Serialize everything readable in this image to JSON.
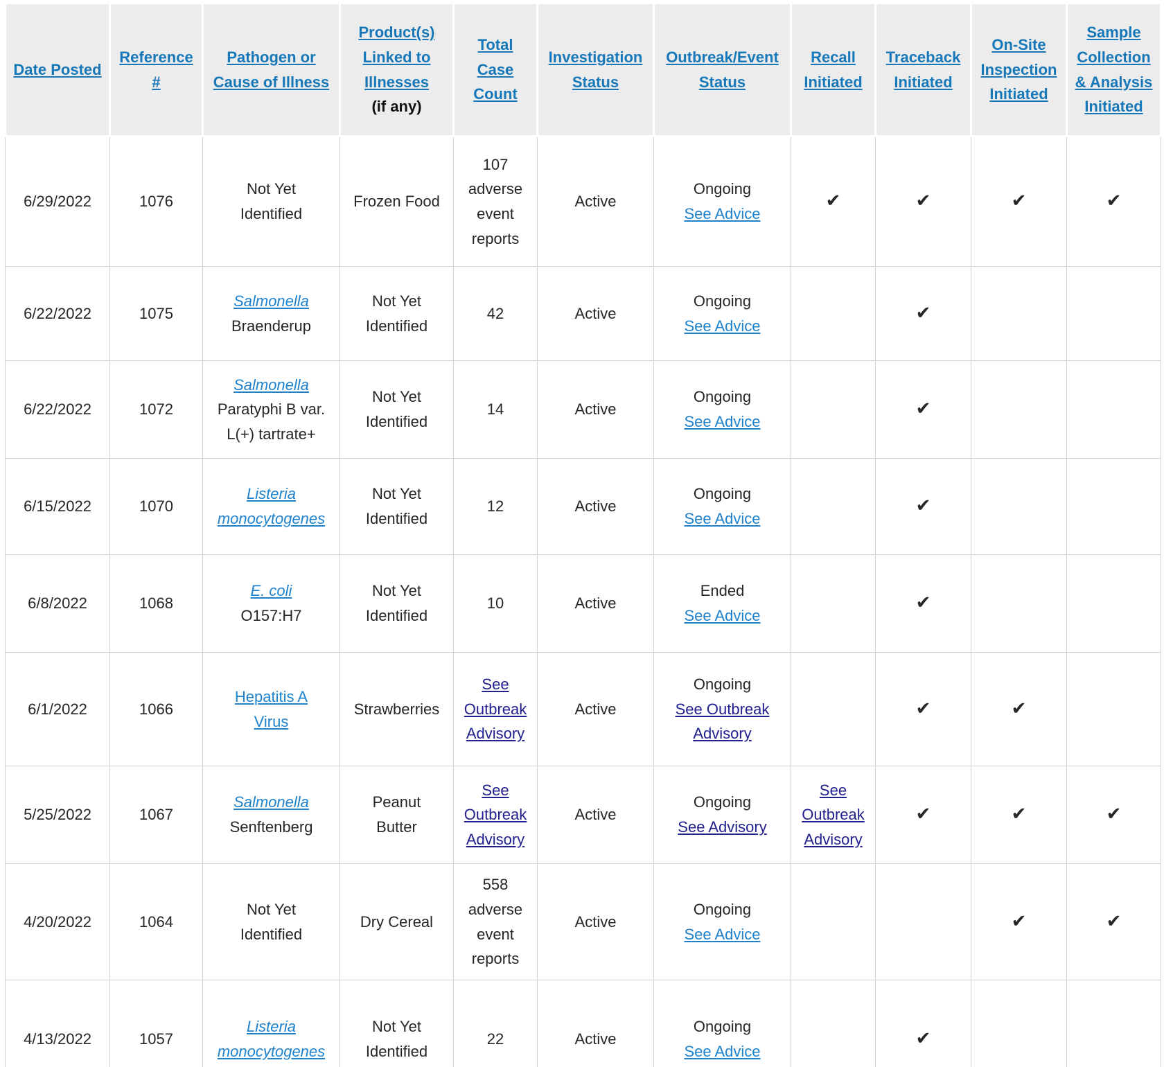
{
  "colors": {
    "header_link": "#1778b9",
    "body_link": "#1e82cd",
    "visited_link": "#20208f",
    "text": "#262626",
    "header_bg": "#ececec",
    "border": "#d2d2d2",
    "check": "#262626"
  },
  "icons": {
    "check": "✔"
  },
  "table": {
    "columns": [
      {
        "id": "date",
        "label": "Date Posted"
      },
      {
        "id": "reference",
        "label": "Reference #"
      },
      {
        "id": "pathogen",
        "label": "Pathogen or Cause of Illness"
      },
      {
        "id": "product",
        "label": "Product(s) Linked to Illnesses",
        "note": "(if any)"
      },
      {
        "id": "case_count",
        "label": "Total Case Count"
      },
      {
        "id": "investigation",
        "label": "Investigation Status"
      },
      {
        "id": "outbreak",
        "label": "Outbreak/Event Status"
      },
      {
        "id": "recall",
        "label": "Recall Initiated"
      },
      {
        "id": "traceback",
        "label": "Traceback Initiated"
      },
      {
        "id": "onsite",
        "label": "On-Site Inspection Initiated"
      },
      {
        "id": "sample",
        "label": "Sample Collection & Analysis Initiated"
      }
    ],
    "rows": [
      {
        "cells": {
          "date": [
            {
              "type": "text",
              "text": "6/29/2022"
            }
          ],
          "reference": [
            {
              "type": "text",
              "text": "1076"
            }
          ],
          "pathogen": [
            {
              "type": "text",
              "text": "Not Yet"
            },
            {
              "type": "br"
            },
            {
              "type": "text",
              "text": "Identified"
            }
          ],
          "product": [
            {
              "type": "text",
              "text": "Frozen Food"
            }
          ],
          "case_count": [
            {
              "type": "text",
              "text": "107 adverse event reports"
            }
          ],
          "investigation": [
            {
              "type": "text",
              "text": "Active"
            }
          ],
          "outbreak": [
            {
              "type": "text",
              "text": "Ongoing"
            },
            {
              "type": "br"
            },
            {
              "type": "link",
              "text": "See Advice"
            }
          ],
          "recall": [
            {
              "type": "check"
            }
          ],
          "traceback": [
            {
              "type": "check"
            }
          ],
          "onsite": [
            {
              "type": "check"
            }
          ],
          "sample": [
            {
              "type": "check"
            }
          ]
        }
      },
      {
        "cells": {
          "date": [
            {
              "type": "text",
              "text": "6/22/2022"
            }
          ],
          "reference": [
            {
              "type": "text",
              "text": "1075"
            }
          ],
          "pathogen": [
            {
              "type": "link",
              "text": "Salmonella",
              "italic": true
            },
            {
              "type": "br"
            },
            {
              "type": "text",
              "text": "Braenderup"
            }
          ],
          "product": [
            {
              "type": "text",
              "text": "Not Yet"
            },
            {
              "type": "br"
            },
            {
              "type": "text",
              "text": "Identified"
            }
          ],
          "case_count": [
            {
              "type": "text",
              "text": "42"
            }
          ],
          "investigation": [
            {
              "type": "text",
              "text": "Active"
            }
          ],
          "outbreak": [
            {
              "type": "text",
              "text": "Ongoing"
            },
            {
              "type": "br"
            },
            {
              "type": "link",
              "text": "See Advice"
            }
          ],
          "recall": [],
          "traceback": [
            {
              "type": "check"
            }
          ],
          "onsite": [],
          "sample": []
        }
      },
      {
        "cells": {
          "date": [
            {
              "type": "text",
              "text": "6/22/2022"
            }
          ],
          "reference": [
            {
              "type": "text",
              "text": "1072"
            }
          ],
          "pathogen": [
            {
              "type": "link",
              "text": "Salmonella",
              "italic": true
            },
            {
              "type": "br"
            },
            {
              "type": "text",
              "text": "Paratyphi B var. L(+) tartrate+"
            }
          ],
          "product": [
            {
              "type": "text",
              "text": "Not Yet"
            },
            {
              "type": "br"
            },
            {
              "type": "text",
              "text": "Identified"
            }
          ],
          "case_count": [
            {
              "type": "text",
              "text": "14"
            }
          ],
          "investigation": [
            {
              "type": "text",
              "text": "Active"
            }
          ],
          "outbreak": [
            {
              "type": "text",
              "text": "Ongoing"
            },
            {
              "type": "br"
            },
            {
              "type": "link",
              "text": "See Advice"
            }
          ],
          "recall": [],
          "traceback": [
            {
              "type": "check"
            }
          ],
          "onsite": [],
          "sample": []
        }
      },
      {
        "cells": {
          "date": [
            {
              "type": "text",
              "text": "6/15/2022"
            }
          ],
          "reference": [
            {
              "type": "text",
              "text": "1070"
            }
          ],
          "pathogen": [
            {
              "type": "link",
              "text": "Listeria monocytogenes",
              "italic": true
            }
          ],
          "product": [
            {
              "type": "text",
              "text": "Not Yet"
            },
            {
              "type": "br"
            },
            {
              "type": "text",
              "text": "Identified"
            }
          ],
          "case_count": [
            {
              "type": "text",
              "text": "12"
            }
          ],
          "investigation": [
            {
              "type": "text",
              "text": "Active"
            }
          ],
          "outbreak": [
            {
              "type": "text",
              "text": "Ongoing"
            },
            {
              "type": "br"
            },
            {
              "type": "link",
              "text": "See Advice"
            }
          ],
          "recall": [],
          "traceback": [
            {
              "type": "check"
            }
          ],
          "onsite": [],
          "sample": []
        }
      },
      {
        "cells": {
          "date": [
            {
              "type": "text",
              "text": "6/8/2022"
            }
          ],
          "reference": [
            {
              "type": "text",
              "text": "1068"
            }
          ],
          "pathogen": [
            {
              "type": "link",
              "text": "E. coli",
              "italic": true
            },
            {
              "type": "br"
            },
            {
              "type": "text",
              "text": "O157:H7"
            }
          ],
          "product": [
            {
              "type": "text",
              "text": "Not Yet"
            },
            {
              "type": "br"
            },
            {
              "type": "text",
              "text": "Identified"
            }
          ],
          "case_count": [
            {
              "type": "text",
              "text": "10"
            }
          ],
          "investigation": [
            {
              "type": "text",
              "text": "Active"
            }
          ],
          "outbreak": [
            {
              "type": "text",
              "text": "Ended"
            },
            {
              "type": "br"
            },
            {
              "type": "link",
              "text": "See Advice"
            }
          ],
          "recall": [],
          "traceback": [
            {
              "type": "check"
            }
          ],
          "onsite": [],
          "sample": []
        }
      },
      {
        "cells": {
          "date": [
            {
              "type": "text",
              "text": "6/1/2022"
            }
          ],
          "reference": [
            {
              "type": "text",
              "text": "1066"
            }
          ],
          "pathogen": [
            {
              "type": "link",
              "text": "Hepatitis A"
            },
            {
              "type": "br"
            },
            {
              "type": "link",
              "text": "Virus"
            }
          ],
          "product": [
            {
              "type": "text",
              "text": "Strawberries"
            }
          ],
          "case_count": [
            {
              "type": "vlink",
              "text": "See Outbreak Advisory"
            }
          ],
          "investigation": [
            {
              "type": "text",
              "text": "Active"
            }
          ],
          "outbreak": [
            {
              "type": "text",
              "text": "Ongoing"
            },
            {
              "type": "br"
            },
            {
              "type": "vlink",
              "text": "See Outbreak Advisory"
            }
          ],
          "recall": [],
          "traceback": [
            {
              "type": "check"
            }
          ],
          "onsite": [
            {
              "type": "check"
            }
          ],
          "sample": []
        }
      },
      {
        "cells": {
          "date": [
            {
              "type": "text",
              "text": "5/25/2022"
            }
          ],
          "reference": [
            {
              "type": "text",
              "text": "1067"
            }
          ],
          "pathogen": [
            {
              "type": "link",
              "text": "Salmonella",
              "italic": true
            },
            {
              "type": "br"
            },
            {
              "type": "text",
              "text": "Senftenberg"
            }
          ],
          "product": [
            {
              "type": "text",
              "text": "Peanut"
            },
            {
              "type": "br"
            },
            {
              "type": "text",
              "text": "Butter"
            }
          ],
          "case_count": [
            {
              "type": "vlink",
              "text": "See Outbreak Advisory"
            }
          ],
          "investigation": [
            {
              "type": "text",
              "text": "Active"
            }
          ],
          "outbreak": [
            {
              "type": "text",
              "text": "Ongoing"
            },
            {
              "type": "br"
            },
            {
              "type": "vlink",
              "text": "See Advisory"
            }
          ],
          "recall": [
            {
              "type": "vlink",
              "text": "See Outbreak Advisory"
            }
          ],
          "traceback": [
            {
              "type": "check"
            }
          ],
          "onsite": [
            {
              "type": "check"
            }
          ],
          "sample": [
            {
              "type": "check"
            }
          ]
        }
      },
      {
        "cells": {
          "date": [
            {
              "type": "text",
              "text": "4/20/2022"
            }
          ],
          "reference": [
            {
              "type": "text",
              "text": "1064"
            }
          ],
          "pathogen": [
            {
              "type": "text",
              "text": "Not Yet"
            },
            {
              "type": "br"
            },
            {
              "type": "text",
              "text": "Identified"
            }
          ],
          "product": [
            {
              "type": "text",
              "text": "Dry Cereal"
            }
          ],
          "case_count": [
            {
              "type": "text",
              "text": "558 adverse event reports"
            }
          ],
          "investigation": [
            {
              "type": "text",
              "text": "Active"
            }
          ],
          "outbreak": [
            {
              "type": "text",
              "text": "Ongoing"
            },
            {
              "type": "br"
            },
            {
              "type": "link",
              "text": "See Advice"
            }
          ],
          "recall": [],
          "traceback": [],
          "onsite": [
            {
              "type": "check"
            }
          ],
          "sample": [
            {
              "type": "check"
            }
          ]
        }
      },
      {
        "cells": {
          "date": [
            {
              "type": "text",
              "text": "4/13/2022"
            }
          ],
          "reference": [
            {
              "type": "text",
              "text": "1057"
            }
          ],
          "pathogen": [
            {
              "type": "link",
              "text": "Listeria monocytogenes",
              "italic": true
            }
          ],
          "product": [
            {
              "type": "text",
              "text": "Not Yet"
            },
            {
              "type": "br"
            },
            {
              "type": "text",
              "text": "Identified"
            }
          ],
          "case_count": [
            {
              "type": "text",
              "text": "22"
            }
          ],
          "investigation": [
            {
              "type": "text",
              "text": "Active"
            }
          ],
          "outbreak": [
            {
              "type": "text",
              "text": "Ongoing"
            },
            {
              "type": "br"
            },
            {
              "type": "link",
              "text": "See Advice"
            }
          ],
          "recall": [],
          "traceback": [
            {
              "type": "check"
            }
          ],
          "onsite": [],
          "sample": []
        }
      }
    ]
  }
}
